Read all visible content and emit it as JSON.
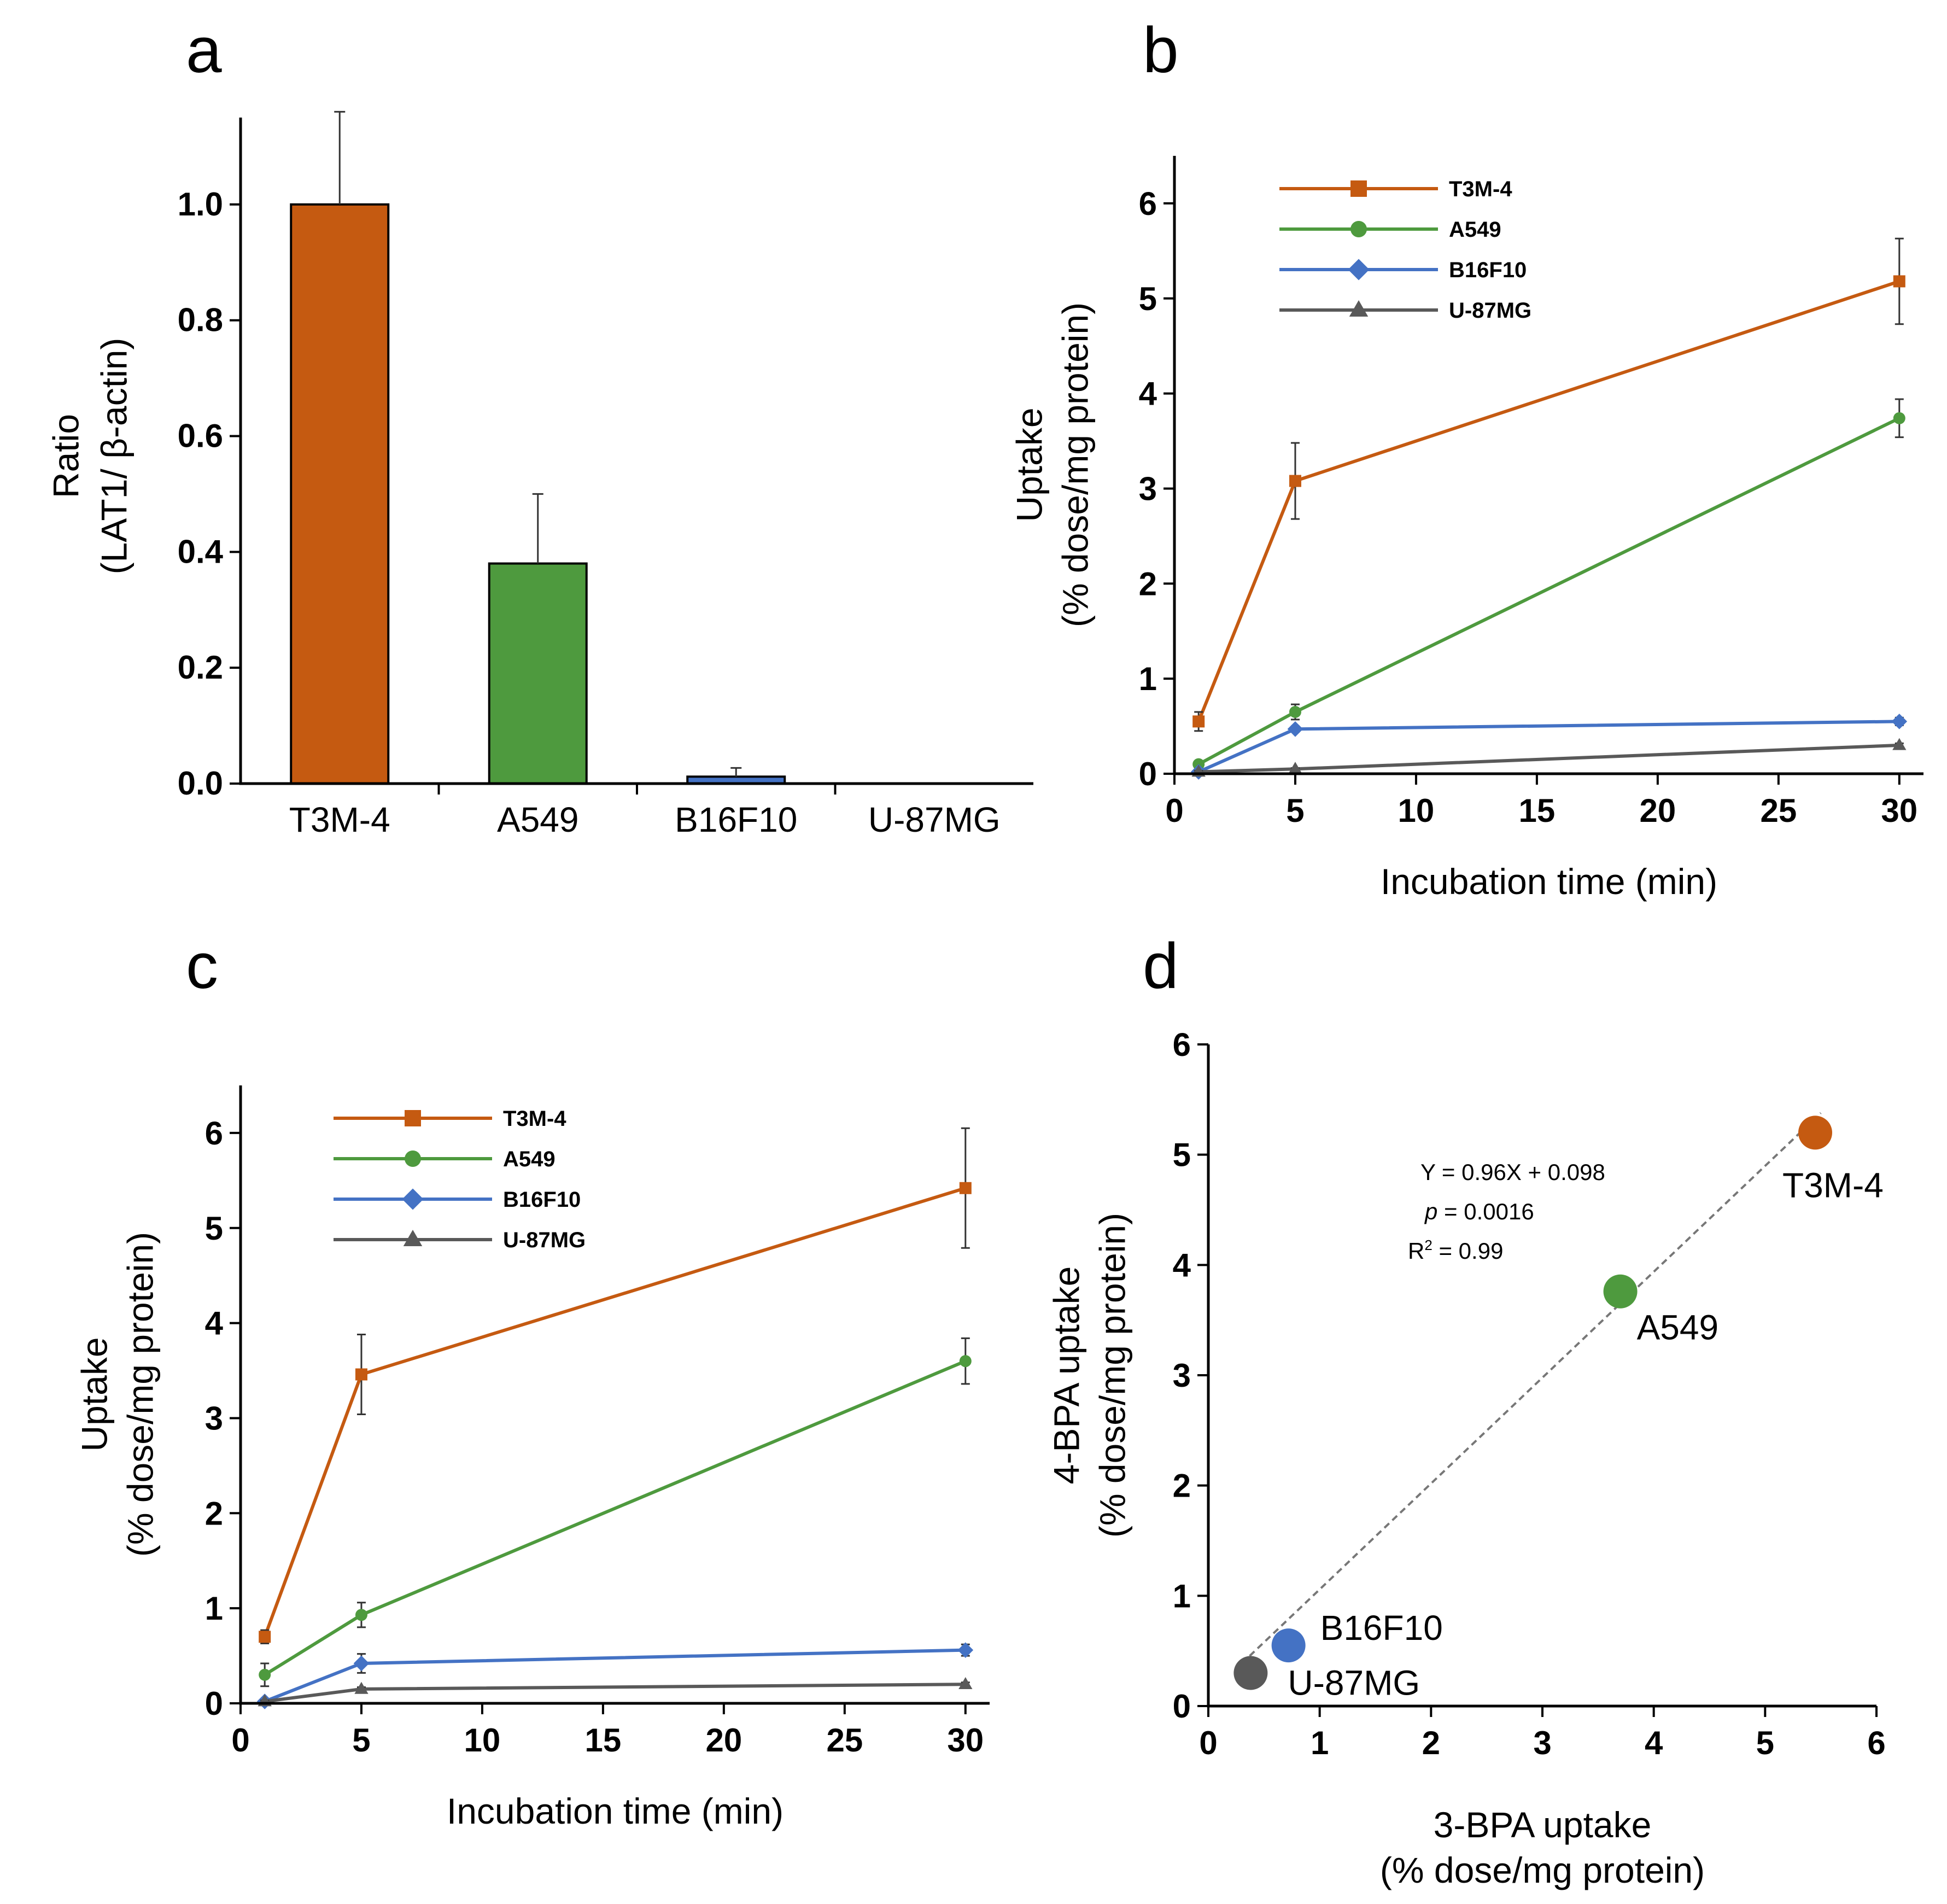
{
  "chart_data": [
    {
      "panel": "a",
      "type": "bar",
      "categories": [
        "T3M-4",
        "A549",
        "B16F10",
        "U-87MG"
      ],
      "values": [
        1.0,
        0.38,
        0.012,
        0.0
      ],
      "errors": [
        0.16,
        0.12,
        0.015,
        0.0
      ],
      "colors": [
        "#C55A11",
        "#4E9A3E",
        "#4472C4",
        "#808080"
      ],
      "ylabel_line1": "Ratio",
      "ylabel_line2": "(LAT1/ β-actin)",
      "ylim": [
        0,
        1.15
      ],
      "yticks": [
        0.0,
        0.2,
        0.4,
        0.6,
        0.8,
        1.0
      ],
      "ytick_labels": [
        "0.0",
        "0.2",
        "0.4",
        "0.6",
        "0.8",
        "1.0"
      ]
    },
    {
      "panel": "b",
      "type": "line",
      "x": [
        1,
        5,
        30
      ],
      "series": [
        {
          "name": "T3M-4",
          "color": "#C55A11",
          "marker": "square",
          "values": [
            0.55,
            3.08,
            5.18
          ],
          "errors": [
            0.1,
            0.4,
            0.45
          ]
        },
        {
          "name": "A549",
          "color": "#4E9A3E",
          "marker": "circle",
          "values": [
            0.1,
            0.65,
            3.74
          ],
          "errors": [
            0.03,
            0.08,
            0.2
          ]
        },
        {
          "name": "B16F10",
          "color": "#4472C4",
          "marker": "diamond",
          "values": [
            0.02,
            0.47,
            0.55
          ],
          "errors": [
            0.01,
            0.03,
            0.04
          ]
        },
        {
          "name": "U-87MG",
          "color": "#595959",
          "marker": "triangle",
          "values": [
            0.02,
            0.05,
            0.3
          ],
          "errors": [
            0.01,
            0.01,
            0.02
          ]
        }
      ],
      "xlabel": "Incubation time (min)",
      "ylabel_line1": "Uptake",
      "ylabel_line2": "(% dose/mg protein)",
      "xlim": [
        0,
        31
      ],
      "ylim": [
        0,
        6.5
      ],
      "xticks": [
        0,
        5,
        10,
        15,
        20,
        25,
        30
      ],
      "yticks": [
        0,
        1,
        2,
        3,
        4,
        5,
        6
      ]
    },
    {
      "panel": "c",
      "type": "line",
      "x": [
        1,
        5,
        30
      ],
      "series": [
        {
          "name": "T3M-4",
          "color": "#C55A11",
          "marker": "square",
          "values": [
            0.7,
            3.46,
            5.42
          ],
          "errors": [
            0.07,
            0.42,
            0.63
          ]
        },
        {
          "name": "A549",
          "color": "#4E9A3E",
          "marker": "circle",
          "values": [
            0.3,
            0.93,
            3.6
          ],
          "errors": [
            0.12,
            0.13,
            0.24
          ]
        },
        {
          "name": "B16F10",
          "color": "#4472C4",
          "marker": "diamond",
          "values": [
            0.02,
            0.42,
            0.56
          ],
          "errors": [
            0.01,
            0.1,
            0.06
          ]
        },
        {
          "name": "U-87MG",
          "color": "#595959",
          "marker": "triangle",
          "values": [
            0.02,
            0.15,
            0.2
          ],
          "errors": [
            0.01,
            0.02,
            0.02
          ]
        }
      ],
      "xlabel": "Incubation time (min)",
      "ylabel_line1": "Uptake",
      "ylabel_line2": "(% dose/mg protein)",
      "xlim": [
        0,
        31
      ],
      "ylim": [
        0,
        6.5
      ],
      "xticks": [
        0,
        5,
        10,
        15,
        20,
        25,
        30
      ],
      "yticks": [
        0,
        1,
        2,
        3,
        4,
        5,
        6
      ]
    },
    {
      "panel": "d",
      "type": "scatter",
      "points": [
        {
          "label": "T3M-4",
          "x": 5.45,
          "y": 5.2,
          "color": "#C55A11"
        },
        {
          "label": "A549",
          "x": 3.7,
          "y": 3.76,
          "color": "#4E9A3E"
        },
        {
          "label": "B16F10",
          "x": 0.72,
          "y": 0.55,
          "color": "#4472C4"
        },
        {
          "label": "U-87MG",
          "x": 0.38,
          "y": 0.3,
          "color": "#595959"
        }
      ],
      "trendline": {
        "slope": 0.96,
        "intercept": 0.098,
        "x_range": [
          0.3,
          5.5
        ]
      },
      "equation": "Y = 0.96X + 0.098",
      "p_symbol": "p",
      "p_value": " = 0.0016",
      "r_base": "R",
      "r_sup": "2",
      "r_value": " = 0.99",
      "xlabel_line1": "3-BPA uptake",
      "xlabel_line2": "(% dose/mg protein)",
      "ylabel_line1": "4-BPA uptake",
      "ylabel_line2": "(% dose/mg protein)",
      "xlim": [
        0,
        6
      ],
      "ylim": [
        0,
        6
      ],
      "xticks": [
        0,
        1,
        2,
        3,
        4,
        5,
        6
      ],
      "yticks": [
        0,
        1,
        2,
        3,
        4,
        5,
        6
      ]
    }
  ]
}
